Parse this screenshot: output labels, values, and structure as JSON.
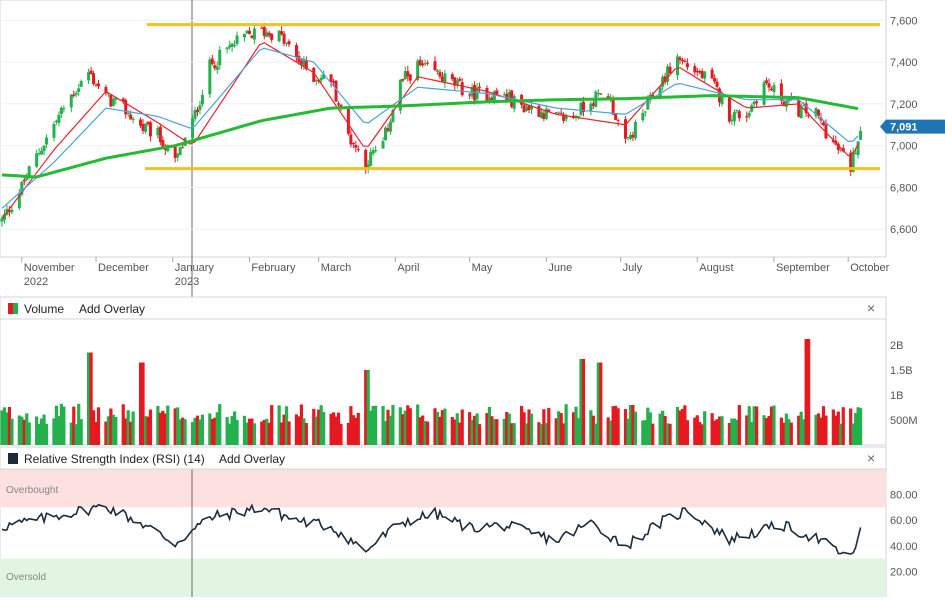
{
  "price_panel": {
    "y_ticks": [
      "7,600",
      "7,400",
      "7,200",
      "7,000",
      "6,800",
      "6,600"
    ],
    "x_ticks": [
      {
        "label": "November",
        "sub": "2022"
      },
      {
        "label": "December",
        "sub": ""
      },
      {
        "label": "January",
        "sub": "2023"
      },
      {
        "label": "February",
        "sub": ""
      },
      {
        "label": "March",
        "sub": ""
      },
      {
        "label": "April",
        "sub": ""
      },
      {
        "label": "May",
        "sub": ""
      },
      {
        "label": "June",
        "sub": ""
      },
      {
        "label": "July",
        "sub": ""
      },
      {
        "label": "August",
        "sub": ""
      },
      {
        "label": "September",
        "sub": ""
      },
      {
        "label": "October",
        "sub": ""
      }
    ],
    "last_price": "7,091",
    "colors": {
      "up": "#22b14c",
      "down": "#e5191f",
      "ma_fast": "#e8242a",
      "ma_mid": "#4aa3df",
      "ma_slow": "#22bb33",
      "range_line": "#f5c11b",
      "last_bg": "#1f74b4"
    }
  },
  "volume_panel": {
    "title": "Volume",
    "add_overlay": "Add Overlay",
    "close": "×",
    "y_ticks": [
      "2B",
      "1.5B",
      "1B",
      "500M"
    ]
  },
  "rsi_panel": {
    "title": "Relative Strength Index (RSI) (14)",
    "add_overlay": "Add Overlay",
    "close": "×",
    "overbought_label": "Overbought",
    "oversold_label": "Oversold",
    "y_ticks": [
      "80.00",
      "60.00",
      "40.00",
      "20.00"
    ],
    "colors": {
      "line": "#1b2b3a",
      "overbought_bg": "#fde0e0",
      "oversold_bg": "#e2f5e2"
    }
  },
  "chart_data": {
    "type": "candlestick",
    "x_range": [
      "2022-10-24",
      "2023-10-09"
    ],
    "price_ylim": [
      6500,
      7650
    ],
    "support_level": 6890,
    "resistance_level": 7580,
    "last_price": 7091,
    "close_path": [
      [
        "2022-10-24",
        6640
      ],
      [
        "2022-10-31",
        6780
      ],
      [
        "2022-11-07",
        6950
      ],
      [
        "2022-11-14",
        7100
      ],
      [
        "2022-11-21",
        7240
      ],
      [
        "2022-11-28",
        7350
      ],
      [
        "2022-12-05",
        7230
      ],
      [
        "2022-12-12",
        7180
      ],
      [
        "2022-12-19",
        7090
      ],
      [
        "2022-12-26",
        7050
      ],
      [
        "2023-01-02",
        6920
      ],
      [
        "2023-01-09",
        7110
      ],
      [
        "2023-01-16",
        7380
      ],
      [
        "2023-01-23",
        7460
      ],
      [
        "2023-01-30",
        7520
      ],
      [
        "2023-02-06",
        7550
      ],
      [
        "2023-02-13",
        7530
      ],
      [
        "2023-02-20",
        7420
      ],
      [
        "2023-02-27",
        7330
      ],
      [
        "2023-03-06",
        7320
      ],
      [
        "2023-03-13",
        7050
      ],
      [
        "2023-03-20",
        6920
      ],
      [
        "2023-03-27",
        7010
      ],
      [
        "2023-04-03",
        7300
      ],
      [
        "2023-04-10",
        7380
      ],
      [
        "2023-04-17",
        7350
      ],
      [
        "2023-04-24",
        7300
      ],
      [
        "2023-05-01",
        7250
      ],
      [
        "2023-05-08",
        7250
      ],
      [
        "2023-05-15",
        7240
      ],
      [
        "2023-05-22",
        7190
      ],
      [
        "2023-05-29",
        7170
      ],
      [
        "2023-06-05",
        7130
      ],
      [
        "2023-06-12",
        7140
      ],
      [
        "2023-06-19",
        7220
      ],
      [
        "2023-06-26",
        7250
      ],
      [
        "2023-07-03",
        7000
      ],
      [
        "2023-07-10",
        7150
      ],
      [
        "2023-07-17",
        7300
      ],
      [
        "2023-07-24",
        7420
      ],
      [
        "2023-07-31",
        7360
      ],
      [
        "2023-08-07",
        7300
      ],
      [
        "2023-08-14",
        7150
      ],
      [
        "2023-08-21",
        7150
      ],
      [
        "2023-08-28",
        7300
      ],
      [
        "2023-09-04",
        7230
      ],
      [
        "2023-09-11",
        7170
      ],
      [
        "2023-09-18",
        7150
      ],
      [
        "2023-09-25",
        7010
      ],
      [
        "2023-10-02",
        6900
      ],
      [
        "2023-10-06",
        7091
      ]
    ],
    "moving_averages": [
      {
        "name": "MA fast",
        "points": [
          [
            "2022-10-24",
            6650
          ],
          [
            "2022-11-14",
            6980
          ],
          [
            "2022-12-05",
            7260
          ],
          [
            "2022-12-26",
            7110
          ],
          [
            "2023-01-09",
            7000
          ],
          [
            "2023-02-06",
            7500
          ],
          [
            "2023-02-27",
            7350
          ],
          [
            "2023-03-20",
            6980
          ],
          [
            "2023-04-10",
            7330
          ],
          [
            "2023-05-08",
            7260
          ],
          [
            "2023-06-05",
            7150
          ],
          [
            "2023-07-03",
            7100
          ],
          [
            "2023-07-24",
            7380
          ],
          [
            "2023-08-21",
            7180
          ],
          [
            "2023-09-11",
            7200
          ],
          [
            "2023-10-02",
            6940
          ],
          [
            "2023-10-06",
            7030
          ]
        ]
      },
      {
        "name": "MA mid",
        "points": [
          [
            "2022-10-24",
            6700
          ],
          [
            "2022-11-14",
            6920
          ],
          [
            "2022-12-05",
            7180
          ],
          [
            "2022-12-26",
            7140
          ],
          [
            "2023-01-09",
            7080
          ],
          [
            "2023-02-06",
            7470
          ],
          [
            "2023-02-27",
            7400
          ],
          [
            "2023-03-20",
            7100
          ],
          [
            "2023-04-10",
            7280
          ],
          [
            "2023-05-08",
            7250
          ],
          [
            "2023-06-05",
            7180
          ],
          [
            "2023-07-03",
            7150
          ],
          [
            "2023-07-24",
            7300
          ],
          [
            "2023-08-21",
            7220
          ],
          [
            "2023-09-11",
            7220
          ],
          [
            "2023-10-02",
            7010
          ],
          [
            "2023-10-06",
            7060
          ]
        ]
      },
      {
        "name": "MA slow",
        "points": [
          [
            "2022-10-24",
            6860
          ],
          [
            "2022-11-07",
            6850
          ],
          [
            "2022-12-05",
            6940
          ],
          [
            "2023-01-02",
            7000
          ],
          [
            "2023-02-06",
            7120
          ],
          [
            "2023-03-06",
            7180
          ],
          [
            "2023-04-03",
            7190
          ],
          [
            "2023-05-08",
            7210
          ],
          [
            "2023-06-05",
            7220
          ],
          [
            "2023-07-03",
            7225
          ],
          [
            "2023-08-07",
            7240
          ],
          [
            "2023-09-11",
            7230
          ],
          [
            "2023-10-06",
            7175
          ]
        ]
      }
    ],
    "volume_ylim": [
      0,
      2300000000
    ],
    "volume_typical": 750000000,
    "volume_spikes": [
      [
        "2022-11-28",
        1850000000
      ],
      [
        "2022-12-19",
        1650000000
      ],
      [
        "2023-03-20",
        1500000000
      ],
      [
        "2023-06-16",
        1720000000
      ],
      [
        "2023-06-23",
        1650000000
      ],
      [
        "2023-09-15",
        2120000000
      ]
    ],
    "rsi_ylim": [
      0,
      100
    ],
    "rsi_overbought": 70,
    "rsi_oversold": 30,
    "rsi_path": [
      [
        "2022-10-24",
        55
      ],
      [
        "2022-11-07",
        60
      ],
      [
        "2022-11-21",
        66
      ],
      [
        "2022-12-05",
        71
      ],
      [
        "2022-12-19",
        58
      ],
      [
        "2023-01-02",
        42
      ],
      [
        "2023-01-16",
        62
      ],
      [
        "2023-02-06",
        70
      ],
      [
        "2023-02-20",
        60
      ],
      [
        "2023-03-06",
        55
      ],
      [
        "2023-03-20",
        36
      ],
      [
        "2023-04-03",
        58
      ],
      [
        "2023-04-17",
        65
      ],
      [
        "2023-05-01",
        54
      ],
      [
        "2023-05-15",
        56
      ],
      [
        "2023-06-05",
        44
      ],
      [
        "2023-06-19",
        58
      ],
      [
        "2023-07-03",
        40
      ],
      [
        "2023-07-17",
        58
      ],
      [
        "2023-07-28",
        68
      ],
      [
        "2023-08-14",
        45
      ],
      [
        "2023-09-04",
        56
      ],
      [
        "2023-09-18",
        46
      ],
      [
        "2023-10-02",
        30
      ],
      [
        "2023-10-06",
        52
      ]
    ]
  }
}
